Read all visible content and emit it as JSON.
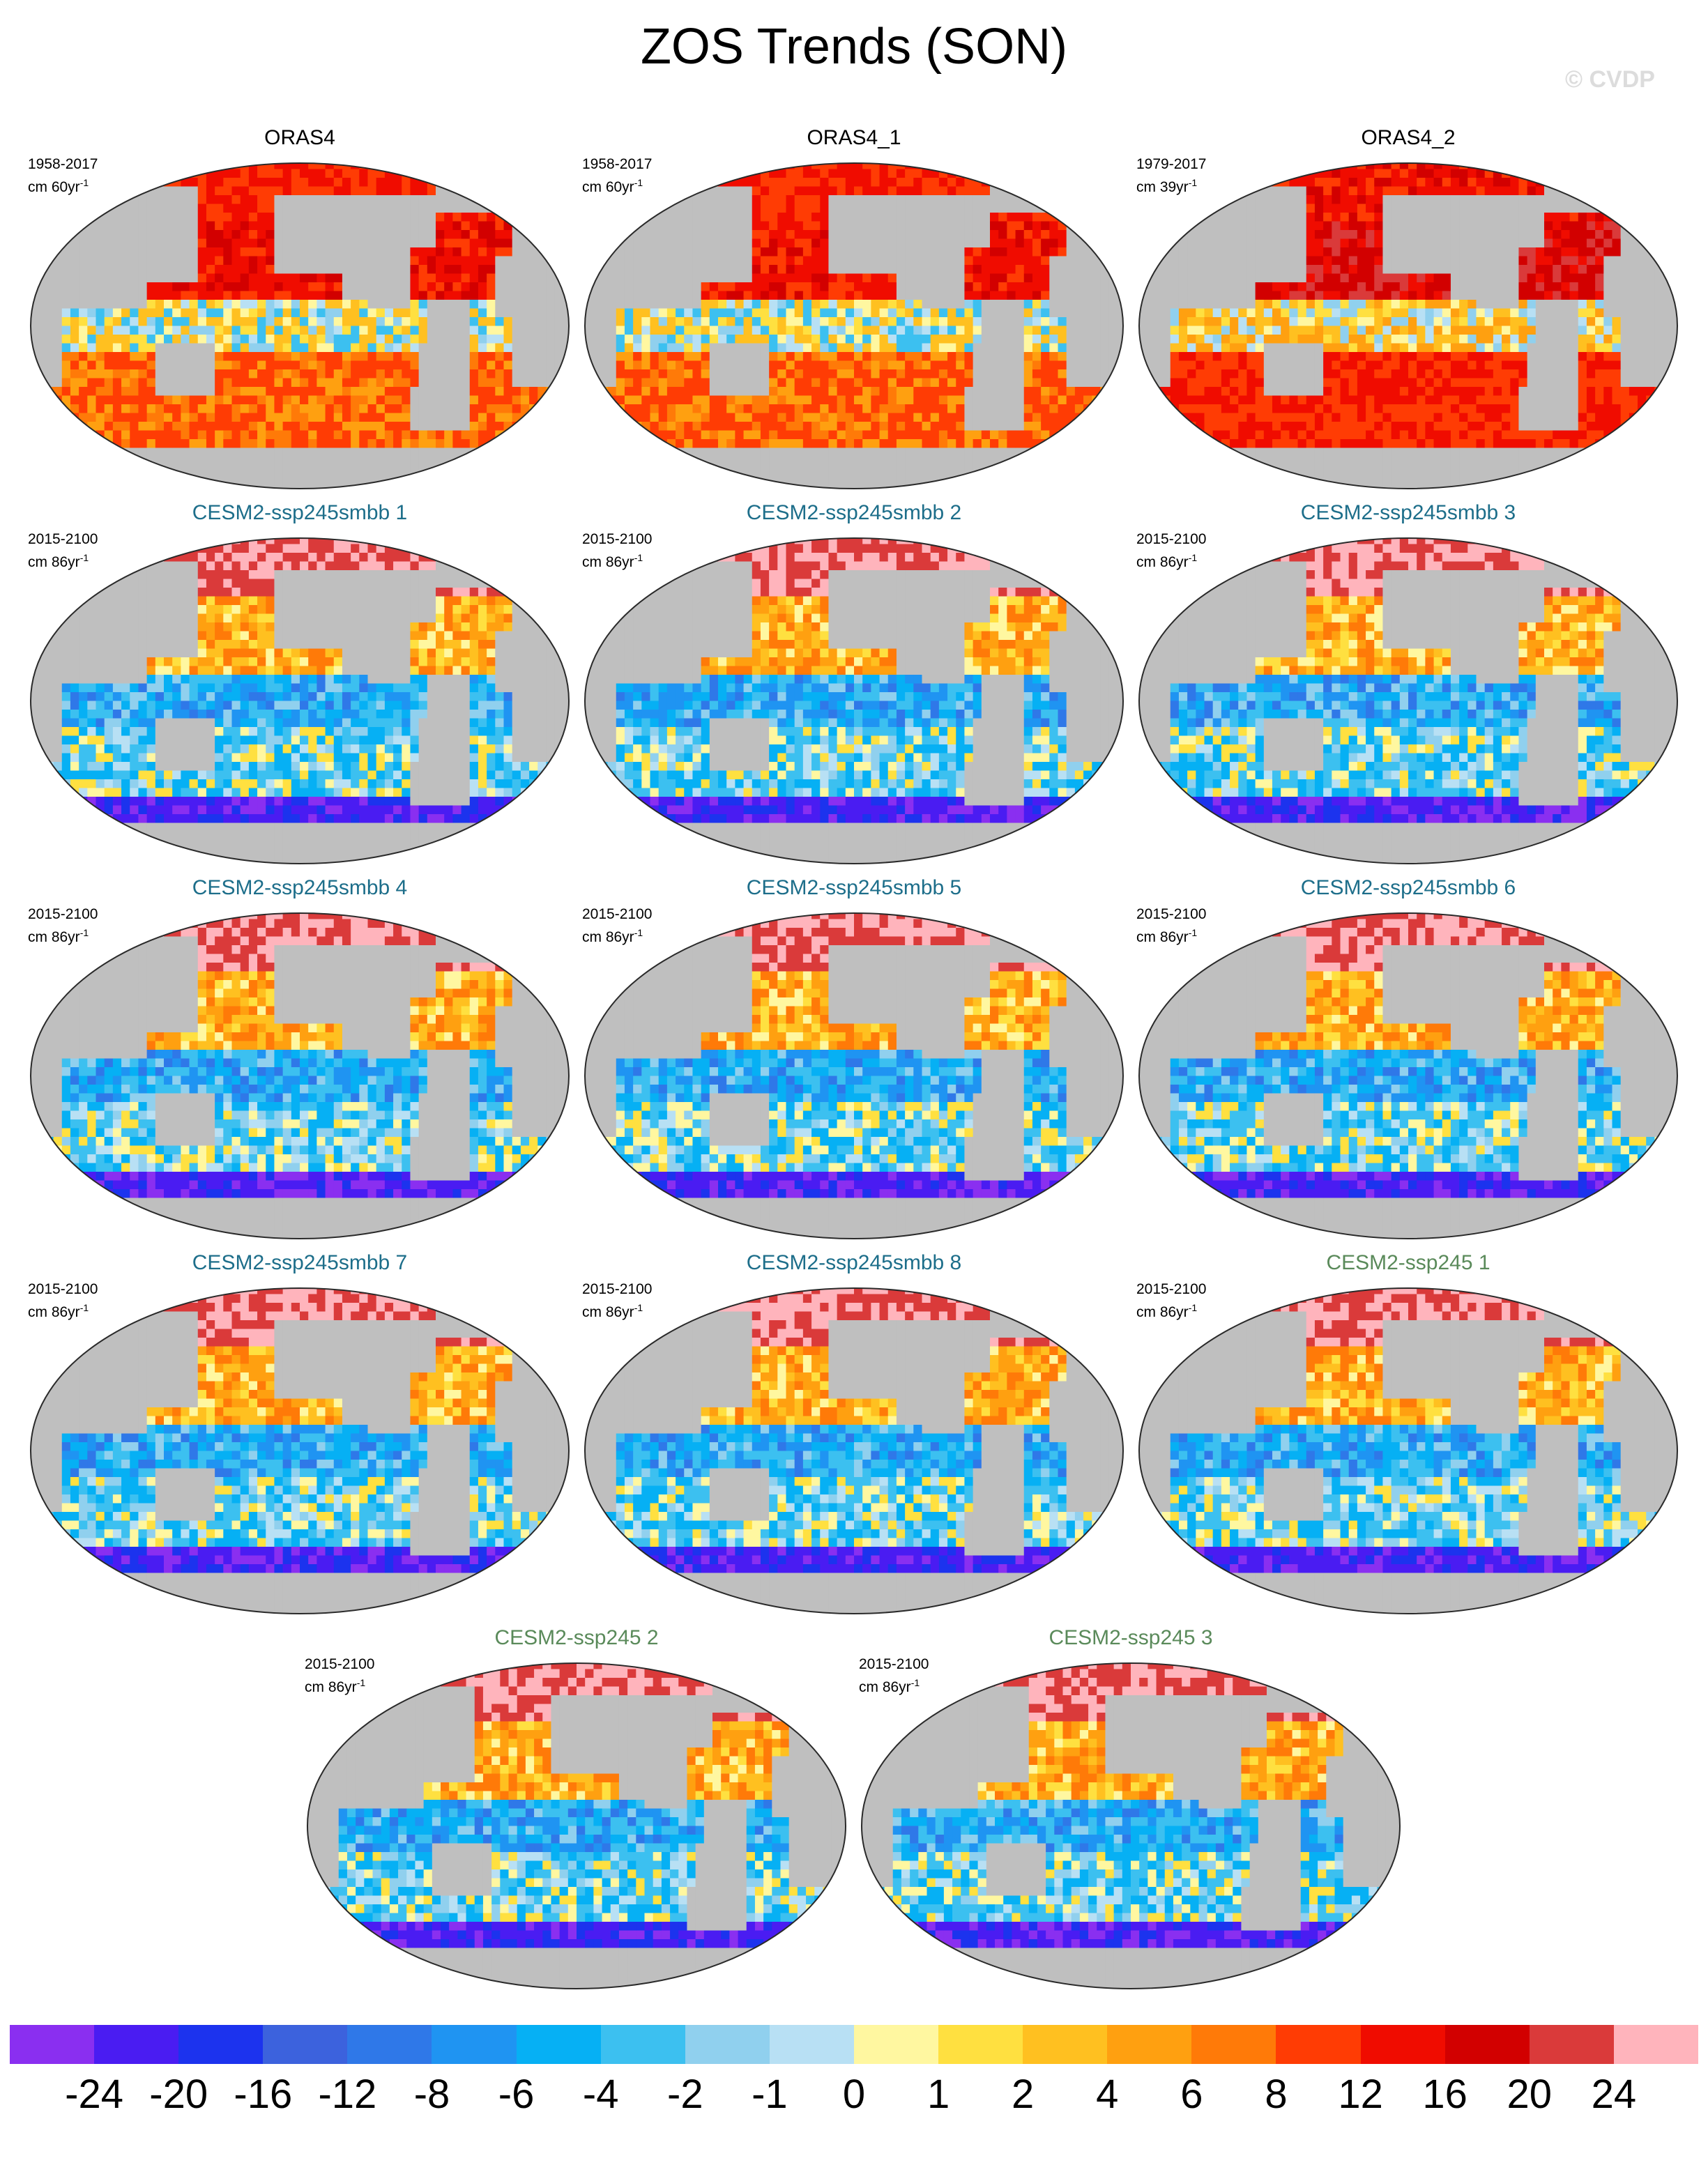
{
  "title": "ZOS Trends (SON)",
  "copyright": "© CVDP",
  "colors": {
    "land": "#bfbfbf",
    "outline": "#2a2a2a",
    "obs_title": "#000000",
    "smbb_title": "#1d6e8a",
    "ssp245_title": "#5a8a5a"
  },
  "panels": [
    {
      "title": "ORAS4",
      "period": "1958-2017",
      "unit": "cm 60yr",
      "unit_exp": "-1",
      "group": "obs",
      "mean": 10,
      "trop": 0,
      "north": 12,
      "south": 8,
      "seed": 11
    },
    {
      "title": "ORAS4_1",
      "period": "1958-2017",
      "unit": "cm 60yr",
      "unit_exp": "-1",
      "group": "obs",
      "mean": 10,
      "trop": 0,
      "north": 12,
      "south": 8,
      "seed": 23
    },
    {
      "title": "ORAS4_2",
      "period": "1979-2017",
      "unit": "cm 39yr",
      "unit_exp": "-1",
      "group": "obs",
      "mean": 14,
      "trop": 2,
      "north": 14,
      "south": 12,
      "seed": 37
    },
    {
      "title": "CESM2-ssp245smbb 1",
      "period": "2015-2100",
      "unit": "cm 86yr",
      "unit_exp": "-1",
      "group": "smbb",
      "mean": 0,
      "trop": -5,
      "north": 24,
      "south": -22,
      "seed": 41
    },
    {
      "title": "CESM2-ssp245smbb 2",
      "period": "2015-2100",
      "unit": "cm 86yr",
      "unit_exp": "-1",
      "group": "smbb",
      "mean": 0,
      "trop": -5,
      "north": 24,
      "south": -22,
      "seed": 53
    },
    {
      "title": "CESM2-ssp245smbb 3",
      "period": "2015-2100",
      "unit": "cm 86yr",
      "unit_exp": "-1",
      "group": "smbb",
      "mean": 0,
      "trop": -5,
      "north": 24,
      "south": -22,
      "seed": 67
    },
    {
      "title": "CESM2-ssp245smbb 4",
      "period": "2015-2100",
      "unit": "cm 86yr",
      "unit_exp": "-1",
      "group": "smbb",
      "mean": 0,
      "trop": -5,
      "north": 24,
      "south": -22,
      "seed": 71
    },
    {
      "title": "CESM2-ssp245smbb 5",
      "period": "2015-2100",
      "unit": "cm 86yr",
      "unit_exp": "-1",
      "group": "smbb",
      "mean": 0,
      "trop": -5,
      "north": 24,
      "south": -22,
      "seed": 83
    },
    {
      "title": "CESM2-ssp245smbb 6",
      "period": "2015-2100",
      "unit": "cm 86yr",
      "unit_exp": "-1",
      "group": "smbb",
      "mean": 0,
      "trop": -5,
      "north": 24,
      "south": -22,
      "seed": 97
    },
    {
      "title": "CESM2-ssp245smbb 7",
      "period": "2015-2100",
      "unit": "cm 86yr",
      "unit_exp": "-1",
      "group": "smbb",
      "mean": 0,
      "trop": -5,
      "north": 24,
      "south": -22,
      "seed": 101
    },
    {
      "title": "CESM2-ssp245smbb 8",
      "period": "2015-2100",
      "unit": "cm 86yr",
      "unit_exp": "-1",
      "group": "smbb",
      "mean": 0,
      "trop": -5,
      "north": 24,
      "south": -22,
      "seed": 113
    },
    {
      "title": "CESM2-ssp245 1",
      "period": "2015-2100",
      "unit": "cm 86yr",
      "unit_exp": "-1",
      "group": "ssp245",
      "mean": 0,
      "trop": -5,
      "north": 24,
      "south": -22,
      "seed": 127
    },
    {
      "title": "CESM2-ssp245 2",
      "period": "2015-2100",
      "unit": "cm 86yr",
      "unit_exp": "-1",
      "group": "ssp245",
      "mean": 0,
      "trop": -5,
      "north": 24,
      "south": -22,
      "seed": 131
    },
    {
      "title": "CESM2-ssp245 3",
      "period": "2015-2100",
      "unit": "cm 86yr",
      "unit_exp": "-1",
      "group": "ssp245",
      "mean": 0,
      "trop": -5,
      "north": 24,
      "south": -22,
      "seed": 149
    }
  ],
  "colorbar": {
    "colors": [
      "#8a2ff0",
      "#4a1cf2",
      "#1c33ee",
      "#3c62dd",
      "#2f78e8",
      "#1f94f2",
      "#06b0f4",
      "#3cc0f0",
      "#90d0ee",
      "#b8e0f4",
      "#fff7a0",
      "#ffe040",
      "#ffc020",
      "#ffa010",
      "#ff7a08",
      "#ff3c04",
      "#f00c00",
      "#d20000",
      "#da3a3a",
      "#ffb4bc"
    ],
    "labels": [
      "-24",
      "-20",
      "-16",
      "-12",
      "-8",
      "-6",
      "-4",
      "-2",
      "-1",
      "0",
      "1",
      "2",
      "4",
      "6",
      "8",
      "12",
      "16",
      "20",
      "24"
    ],
    "edges": [
      -30,
      -24,
      -20,
      -16,
      -12,
      -8,
      -6,
      -4,
      -2,
      -1,
      0,
      1,
      2,
      4,
      6,
      8,
      12,
      16,
      20,
      24,
      30
    ]
  }
}
